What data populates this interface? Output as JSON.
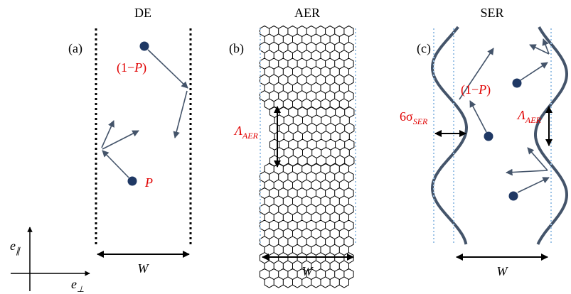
{
  "panels": [
    {
      "title": "DE",
      "label": "(a)",
      "width_label": "W",
      "escape": {
        "open": "(1−",
        "var": "P",
        "close": ")"
      },
      "stick": "P"
    },
    {
      "title": "AER",
      "label": "(b)",
      "width_label": "W",
      "roughness": {
        "base": "Λ",
        "sub": "AER"
      }
    },
    {
      "title": "SER",
      "label": "(c)",
      "width_label": "W",
      "escape": {
        "open": "(1−",
        "var": "P",
        "close": ")"
      },
      "sigma": {
        "base": "6σ",
        "sub": "SER"
      },
      "roughness": {
        "base": "Λ",
        "sub": "AER"
      }
    }
  ],
  "axes": {
    "parallel": {
      "base": "e",
      "sub": "∥"
    },
    "perp": {
      "base": "e",
      "sub": "⊥"
    }
  }
}
